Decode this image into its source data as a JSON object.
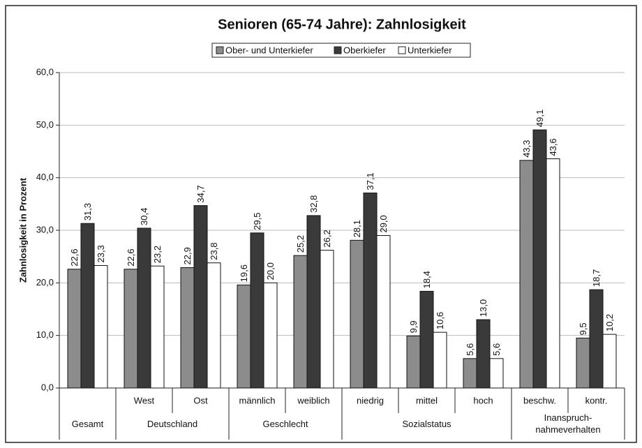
{
  "chart_data": {
    "type": "bar",
    "title": "Senioren (65-74 Jahre): Zahnlosigkeit",
    "y_label": "Zahnlosigkeit in Prozent",
    "categories": [
      null,
      "West",
      "Ost",
      "männlich",
      "weiblich",
      "niedrig",
      "mittel",
      "hoch",
      "beschw.",
      "kontr."
    ],
    "category_groups": [
      "Gesamt",
      "Deutschland",
      "Deutschland",
      "Geschlecht",
      "Geschlecht",
      "Sozialstatus",
      "Sozialstatus",
      "Sozialstatus",
      "Inanspruch-\nnahmeverhalten",
      "Inanspruch-\nnahmeverhalten"
    ],
    "series": [
      {
        "name": "Ober- und Unterkiefer",
        "color": "#8c8c8c",
        "values": [
          22.6,
          22.6,
          22.9,
          19.6,
          25.2,
          28.1,
          9.9,
          5.6,
          43.3,
          9.5
        ],
        "value_labels": [
          "22,6",
          "22,6",
          "22,9",
          "19,6",
          "25,2",
          "28,1",
          "9,9",
          "5,6",
          "43,3",
          "9,5"
        ]
      },
      {
        "name": "Oberkiefer",
        "color": "#3a3a3a",
        "values": [
          31.3,
          30.4,
          34.7,
          29.5,
          32.8,
          37.1,
          18.4,
          13.0,
          49.1,
          18.7
        ],
        "value_labels": [
          "31,3",
          "30,4",
          "34,7",
          "29,5",
          "32,8",
          "37,1",
          "18,4",
          "13,0",
          "49,1",
          "18,7"
        ]
      },
      {
        "name": "Unterkiefer",
        "color": "#ffffff",
        "values": [
          23.3,
          23.2,
          23.8,
          20.0,
          26.2,
          29.0,
          10.6,
          5.6,
          43.6,
          10.2
        ],
        "value_labels": [
          "23,3",
          "23,2",
          "23,8",
          "20,0",
          "26,2",
          "29,0",
          "10,6",
          "5,6",
          "43,6",
          "10,2"
        ]
      }
    ],
    "ylim": [
      0,
      60
    ],
    "yticks": [
      {
        "value": 0,
        "label": "0,0"
      },
      {
        "value": 10,
        "label": "10,0"
      },
      {
        "value": 20,
        "label": "20,0"
      },
      {
        "value": 30,
        "label": "30,0"
      },
      {
        "value": 40,
        "label": "40,0"
      },
      {
        "value": 50,
        "label": "50,0"
      },
      {
        "value": 60,
        "label": "60,0"
      }
    ],
    "grid": true,
    "legend": "top"
  }
}
